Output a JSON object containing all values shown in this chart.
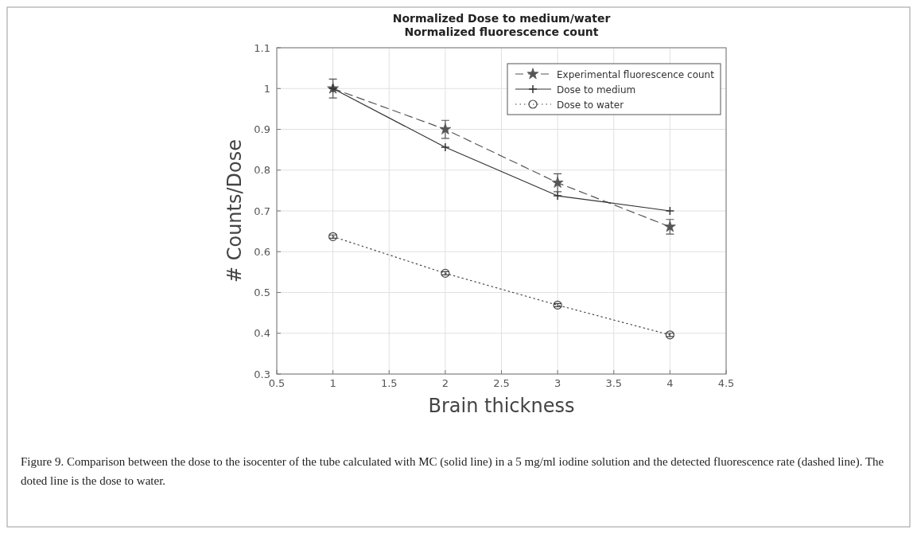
{
  "chart_data": {
    "type": "line",
    "title": "Normalized Dose to medium/water\nNormalized fluorescence count",
    "xlabel": "Brain thickness",
    "ylabel": "# Counts/Dose",
    "x": [
      1,
      2,
      3,
      4
    ],
    "series": [
      {
        "name": "Experimental fluorescence count",
        "color": "#555555",
        "values": [
          1.0,
          0.9,
          0.769,
          0.661
        ],
        "errors": [
          0.023,
          0.022,
          0.022,
          0.018
        ],
        "marker": "star",
        "line_style": "dashed"
      },
      {
        "name": "Dose to medium",
        "color": "#333333",
        "values": [
          1.0,
          0.856,
          0.737,
          0.7
        ],
        "marker": "cross",
        "line_style": "solid"
      },
      {
        "name": "Dose to water",
        "color": "#444444",
        "values": [
          0.637,
          0.547,
          0.469,
          0.396
        ],
        "errors": [
          0.004,
          0.004,
          0.004,
          0.004
        ],
        "marker": "circle",
        "line_style": "dotted"
      }
    ],
    "xlim": [
      0.5,
      4.5
    ],
    "xticks": [
      0.5,
      1,
      1.5,
      2,
      2.5,
      3,
      3.5,
      4,
      4.5
    ],
    "ylim": [
      0.3,
      1.1
    ],
    "yticks": [
      0.3,
      0.4,
      0.5,
      0.6,
      0.7,
      0.8,
      0.9,
      1,
      1.1
    ],
    "grid": true,
    "legend": "top right",
    "annotations": [
      "Figure 9. Comparison between the dose to the isocenter of the tube calculated with MC (solid line) in a 5 mg/ml iodine solution and the detected fluorescence rate (dashed line). The doted line is the dose to water."
    ]
  }
}
